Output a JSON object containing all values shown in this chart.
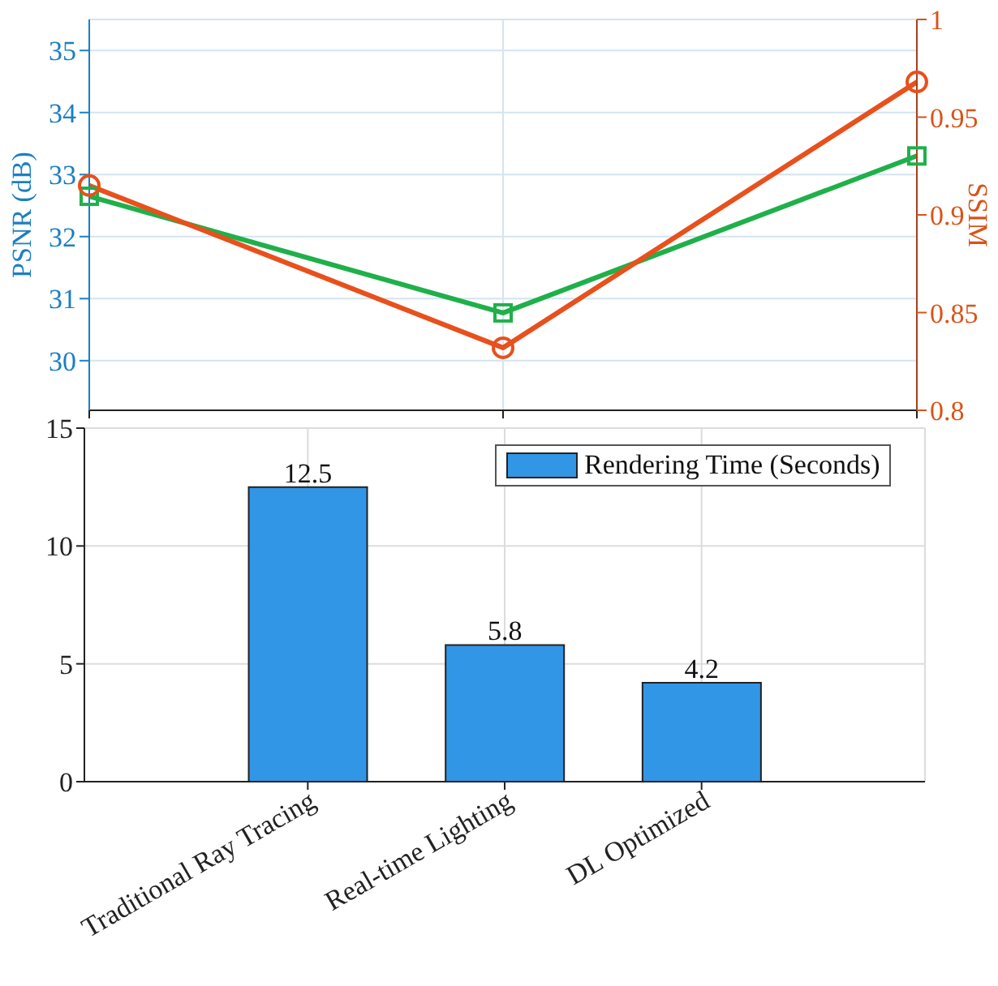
{
  "chart_data": [
    {
      "type": "line",
      "categories": [
        null,
        null,
        null
      ],
      "ylabel": "PSNR (dB)",
      "y2label": "SSIM",
      "ylim": [
        29.2,
        35.5
      ],
      "yticks": [
        30,
        31,
        32,
        33,
        34,
        35
      ],
      "y2lim": [
        0.8,
        1
      ],
      "y2ticks": [
        0.8,
        0.85,
        0.9,
        0.95,
        1
      ],
      "grid": true,
      "line_style": "solid",
      "series": [
        {
          "color": "#1fb04a",
          "values": [
            32.65,
            30.77,
            33.3
          ],
          "marker": "square"
        },
        {
          "color": "#e8501c",
          "values": [
            0.915,
            0.832,
            0.968
          ],
          "marker": "circle",
          "axis": "y2"
        }
      ]
    },
    {
      "type": "bar",
      "categories": [
        "Traditional Ray Tracing",
        "Real-time Lighting",
        "DL Optimized"
      ],
      "ylim": [
        0,
        15
      ],
      "yticks": [
        0,
        5,
        10,
        15
      ],
      "grid": true,
      "legend": "top right",
      "data_labels": true,
      "series": [
        {
          "name": "Rendering Time (Seconds)",
          "color": "#3296e6",
          "values": [
            12.5,
            5.8,
            4.2
          ]
        }
      ]
    }
  ]
}
